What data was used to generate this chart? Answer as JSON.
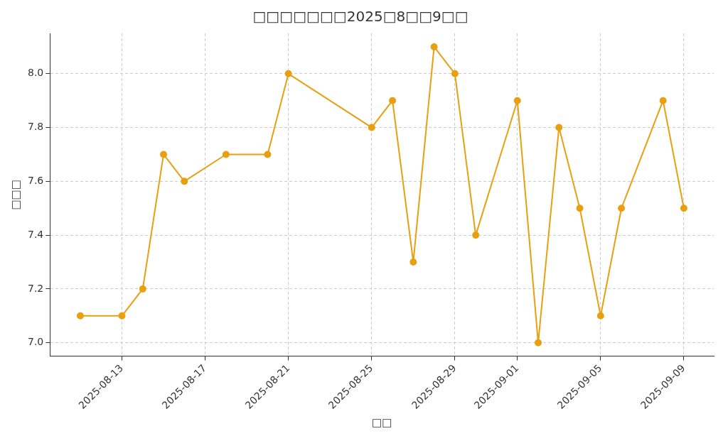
{
  "chart_data": {
    "type": "line",
    "title": "□□□□□□□2025□8□□9□□",
    "xlabel": "□□",
    "ylabel": "□□□",
    "x": [
      "2025-08-11",
      "2025-08-13",
      "2025-08-14",
      "2025-08-15",
      "2025-08-16",
      "2025-08-18",
      "2025-08-20",
      "2025-08-21",
      "2025-08-25",
      "2025-08-26",
      "2025-08-27",
      "2025-08-28",
      "2025-08-29",
      "2025-08-30",
      "2025-09-01",
      "2025-09-02",
      "2025-09-03",
      "2025-09-04",
      "2025-09-05",
      "2025-09-06",
      "2025-09-08",
      "2025-09-09"
    ],
    "series": [
      {
        "color": "#e8a010",
        "values": [
          7.1,
          7.1,
          7.2,
          7.7,
          7.6,
          7.7,
          7.7,
          8.0,
          7.8,
          7.9,
          7.3,
          8.1,
          8.0,
          7.4,
          7.9,
          7.0,
          7.8,
          7.5,
          7.1,
          7.5,
          7.9,
          7.5
        ]
      }
    ],
    "xlim": [
      "2025-08-09T13:00",
      "2025-09-10T10:30"
    ],
    "xticks": [
      "2025-08-13",
      "2025-08-17",
      "2025-08-21",
      "2025-08-25",
      "2025-08-29",
      "2025-09-01",
      "2025-09-05",
      "2025-09-09"
    ],
    "ylim": [
      6.95,
      8.15
    ],
    "yticks": [
      {
        "value": 7.0,
        "label": "7.0"
      },
      {
        "value": 7.2,
        "label": "7.2"
      },
      {
        "value": 7.4,
        "label": "7.4"
      },
      {
        "value": 7.6,
        "label": "7.6"
      },
      {
        "value": 7.8,
        "label": "7.8"
      },
      {
        "value": 8.0,
        "label": "8.0"
      }
    ],
    "grid": true,
    "marker": "circle",
    "line_style": "solid",
    "legend": false
  }
}
